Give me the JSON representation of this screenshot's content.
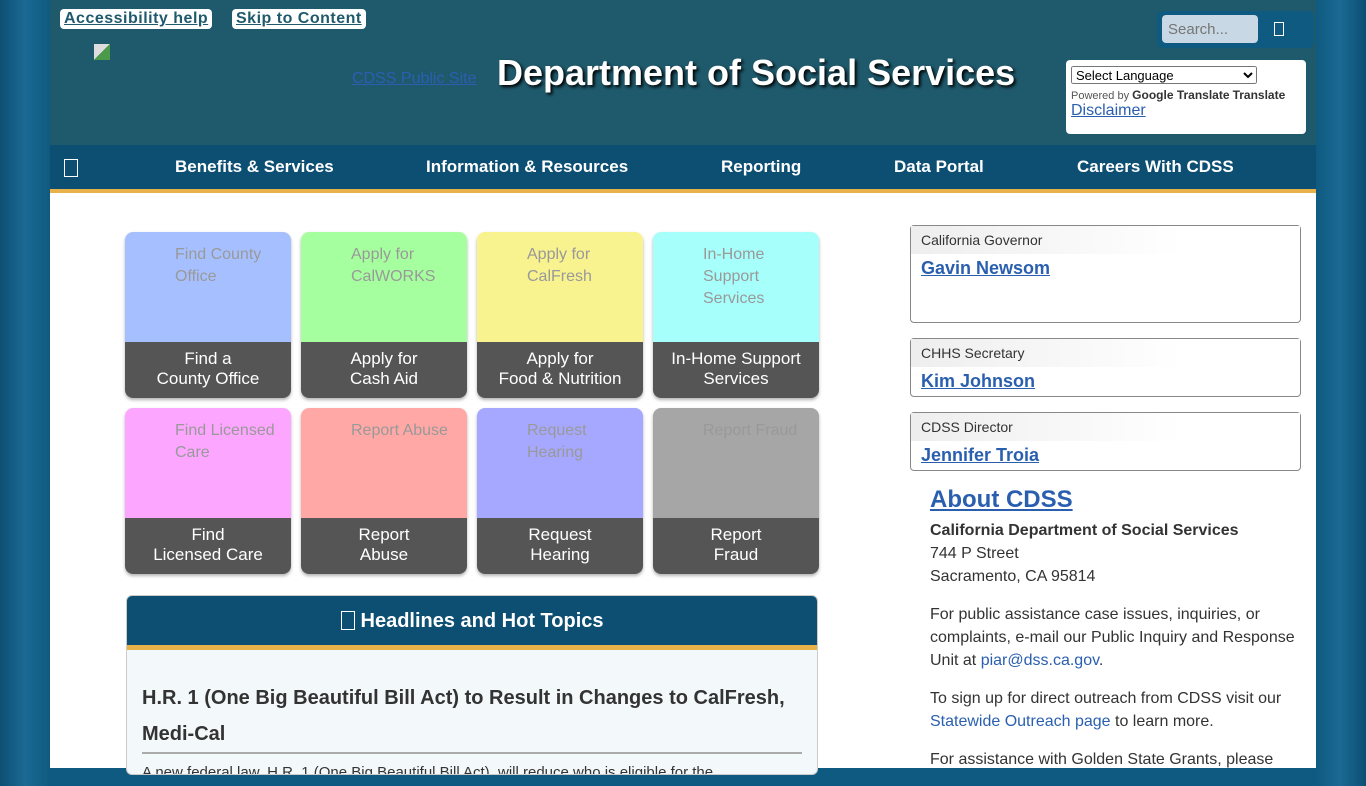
{
  "header": {
    "accessibility": "Accessibility help",
    "skip": "Skip to Content",
    "public_site": "CDSS Public Site",
    "title": "Department of Social Services",
    "search_placeholder": "Search...",
    "language_select": "Select Language",
    "powered_by": "Powered by",
    "google_translate": "Google Translate",
    "translate": "Translate",
    "disclaimer": "Disclaimer"
  },
  "nav": [
    "Benefits & Services",
    "Information & Resources",
    "Reporting",
    "Data Portal",
    "Careers With CDSS"
  ],
  "tiles": [
    {
      "alt": "Find County Office",
      "label1": "Find a",
      "label2": "County Office",
      "color": "#a6c0ff"
    },
    {
      "alt": "Apply for CalWORKS",
      "label1": "Apply for",
      "label2": "Cash Aid",
      "color": "#a6ff9f"
    },
    {
      "alt": "Apply for CalFresh",
      "label1": "Apply for",
      "label2": "Food & Nutrition",
      "color": "#f8f28f"
    },
    {
      "alt": "In-Home Support Services",
      "label1": "In-Home Support",
      "label2": "Services",
      "color": "#a6fffb"
    },
    {
      "alt": "Find Licensed Care",
      "label1": "Find",
      "label2": "Licensed Care",
      "color": "#fda6ff"
    },
    {
      "alt": "Report Abuse",
      "label1": "Report",
      "label2": "Abuse",
      "color": "#ffa8a6"
    },
    {
      "alt": "Request Hearing",
      "label1": "Request",
      "label2": "Hearing",
      "color": "#a6a8ff"
    },
    {
      "alt": "Report Fraud",
      "label1": "Report",
      "label2": "Fraud",
      "color": "#a6a6a6"
    }
  ],
  "headlines": {
    "title": "Headlines and Hot Topics",
    "article_title": "H.R. 1 (One Big Beautiful Bill Act) to Result in Changes to CalFresh, Medi-Cal",
    "article_text": "A new federal law, H.R. 1 (One Big Beautiful Bill Act), will reduce who is eligible for the"
  },
  "officials": [
    {
      "role": "California Governor",
      "name": "Gavin Newsom"
    },
    {
      "role": "CHHS Secretary",
      "name": "Kim Johnson"
    },
    {
      "role": "CDSS Director",
      "name": "Jennifer Troia"
    }
  ],
  "about": {
    "title": "About CDSS",
    "org": "California Department of Social Services",
    "street": "744 P Street",
    "city": "Sacramento, CA 95814",
    "p1_before": "For public assistance case issues, inquiries, or complaints, e-mail our Public Inquiry and Response Unit at ",
    "email": "piar@dss.ca.gov",
    "p1_after": ".",
    "p2_before": "To sign up for direct outreach from CDSS visit our ",
    "outreach_link": "Statewide Outreach page ",
    "p2_after": "to learn more.",
    "p3": "For assistance with Golden State Grants, please"
  }
}
